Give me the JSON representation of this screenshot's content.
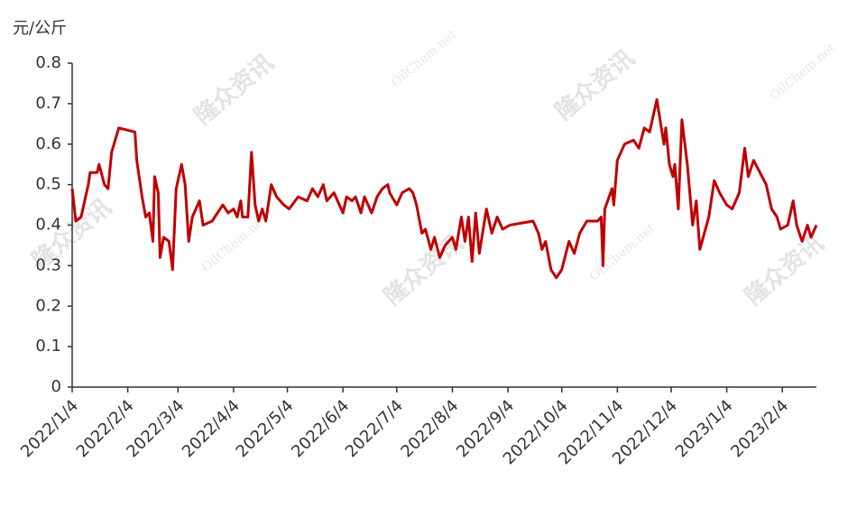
{
  "chart_data": {
    "type": "line",
    "y_axis_label": "元/公斤",
    "watermarks": [
      "隆众资讯",
      "OilChem.net",
      "隆众资讯",
      "OilChem.net",
      "隆众资讯",
      "隆众资讯",
      "OilChem.net",
      "隆众资讯",
      "OilChem.net"
    ],
    "x": [
      "2022/1/4",
      "2022/1/6",
      "2022/1/9",
      "2022/1/13",
      "2022/1/14",
      "2022/1/18",
      "2022/1/19",
      "2022/1/22",
      "2022/1/24",
      "2022/1/26",
      "2022/1/30",
      "2022/2/8",
      "2022/2/9",
      "2022/2/12",
      "2022/2/14",
      "2022/2/16",
      "2022/2/18",
      "2022/2/19",
      "2022/2/21",
      "2022/2/22",
      "2022/2/24",
      "2022/2/27",
      "2022/3/1",
      "2022/3/3",
      "2022/3/6",
      "2022/3/8",
      "2022/3/10",
      "2022/3/12",
      "2022/3/16",
      "2022/3/18",
      "2022/3/23",
      "2022/3/29",
      "2022/4/1",
      "2022/4/4",
      "2022/4/6",
      "2022/4/8",
      "2022/4/9",
      "2022/4/12",
      "2022/4/14",
      "2022/4/16",
      "2022/4/18",
      "2022/4/20",
      "2022/4/22",
      "2022/4/25",
      "2022/4/28",
      "2022/5/2",
      "2022/5/5",
      "2022/5/10",
      "2022/5/15",
      "2022/5/18",
      "2022/5/21",
      "2022/5/24",
      "2022/5/26",
      "2022/5/30",
      "2022/6/1",
      "2022/6/4",
      "2022/6/6",
      "2022/6/9",
      "2022/6/11",
      "2022/6/14",
      "2022/6/16",
      "2022/6/20",
      "2022/6/23",
      "2022/6/26",
      "2022/6/29",
      "2022/6/30",
      "2022/7/4",
      "2022/7/7",
      "2022/7/11",
      "2022/7/13",
      "2022/7/15",
      "2022/7/18",
      "2022/7/20",
      "2022/7/23",
      "2022/7/25",
      "2022/7/28",
      "2022/7/31",
      "2022/8/4",
      "2022/8/6",
      "2022/8/9",
      "2022/8/11",
      "2022/8/13",
      "2022/8/15",
      "2022/8/17",
      "2022/8/19",
      "2022/8/23",
      "2022/8/26",
      "2022/8/29",
      "2022/9/1",
      "2022/9/5",
      "2022/9/18",
      "2022/9/21",
      "2022/9/23",
      "2022/9/25",
      "2022/9/28",
      "2022/10/1",
      "2022/10/4",
      "2022/10/8",
      "2022/10/11",
      "2022/10/14",
      "2022/10/18",
      "2022/10/24",
      "2022/10/26",
      "2022/10/27",
      "2022/10/28",
      "2022/11/1",
      "2022/11/2",
      "2022/11/4",
      "2022/11/8",
      "2022/11/13",
      "2022/11/16",
      "2022/11/19",
      "2022/11/22",
      "2022/11/26",
      "2022/11/30",
      "2022/12/1",
      "2022/12/3",
      "2022/12/5",
      "2022/12/6",
      "2022/12/8",
      "2022/12/10",
      "2022/12/13",
      "2022/12/16",
      "2022/12/18",
      "2022/12/20",
      "2022/12/25",
      "2022/12/28",
      "2022/12/31",
      "2023/1/4",
      "2023/1/7",
      "2023/1/11",
      "2023/1/14",
      "2023/1/16",
      "2023/1/19",
      "2023/1/26",
      "2023/1/29",
      "2023/2/1",
      "2023/2/3",
      "2023/2/7",
      "2023/2/10",
      "2023/2/12",
      "2023/2/15",
      "2023/2/18",
      "2023/2/20",
      "2023/2/23"
    ],
    "series": [
      {
        "color": "#c00000",
        "values": [
          0.49,
          0.41,
          0.42,
          0.5,
          0.53,
          0.53,
          0.55,
          0.5,
          0.49,
          0.58,
          0.64,
          0.63,
          0.56,
          0.47,
          0.42,
          0.43,
          0.36,
          0.52,
          0.48,
          0.32,
          0.37,
          0.36,
          0.29,
          0.49,
          0.55,
          0.5,
          0.36,
          0.42,
          0.46,
          0.4,
          0.41,
          0.45,
          0.43,
          0.44,
          0.42,
          0.46,
          0.42,
          0.42,
          0.58,
          0.45,
          0.41,
          0.44,
          0.41,
          0.5,
          0.47,
          0.45,
          0.44,
          0.47,
          0.46,
          0.49,
          0.47,
          0.5,
          0.46,
          0.48,
          0.46,
          0.43,
          0.47,
          0.46,
          0.47,
          0.43,
          0.47,
          0.43,
          0.47,
          0.49,
          0.5,
          0.48,
          0.45,
          0.48,
          0.49,
          0.48,
          0.45,
          0.38,
          0.39,
          0.34,
          0.37,
          0.32,
          0.35,
          0.37,
          0.34,
          0.42,
          0.36,
          0.42,
          0.31,
          0.43,
          0.33,
          0.44,
          0.38,
          0.42,
          0.39,
          0.4,
          0.41,
          0.38,
          0.34,
          0.36,
          0.29,
          0.27,
          0.29,
          0.36,
          0.33,
          0.38,
          0.41,
          0.41,
          0.42,
          0.3,
          0.44,
          0.49,
          0.45,
          0.56,
          0.6,
          0.61,
          0.59,
          0.64,
          0.63,
          0.71,
          0.6,
          0.64,
          0.55,
          0.52,
          0.55,
          0.44,
          0.66,
          0.55,
          0.4,
          0.46,
          0.34,
          0.42,
          0.51,
          0.48,
          0.45,
          0.44,
          0.48,
          0.59,
          0.52,
          0.56,
          0.5,
          0.44,
          0.42,
          0.39,
          0.4,
          0.46,
          0.4,
          0.36,
          0.4,
          0.37,
          0.4
        ]
      }
    ],
    "xlim": [
      "2022/1/4",
      "2023/2/23"
    ],
    "xticks": [
      "2022/1/4",
      "2022/2/4",
      "2022/3/4",
      "2022/4/4",
      "2022/5/4",
      "2022/6/4",
      "2022/7/4",
      "2022/8/4",
      "2022/9/4",
      "2022/10/4",
      "2022/11/4",
      "2022/12/4",
      "2023/1/4",
      "2023/2/4"
    ],
    "ylim": [
      0,
      0.8
    ],
    "yticks": [
      0,
      0.1,
      0.2,
      0.3,
      0.4,
      0.5,
      0.6,
      0.7,
      0.8
    ],
    "grid": false
  }
}
